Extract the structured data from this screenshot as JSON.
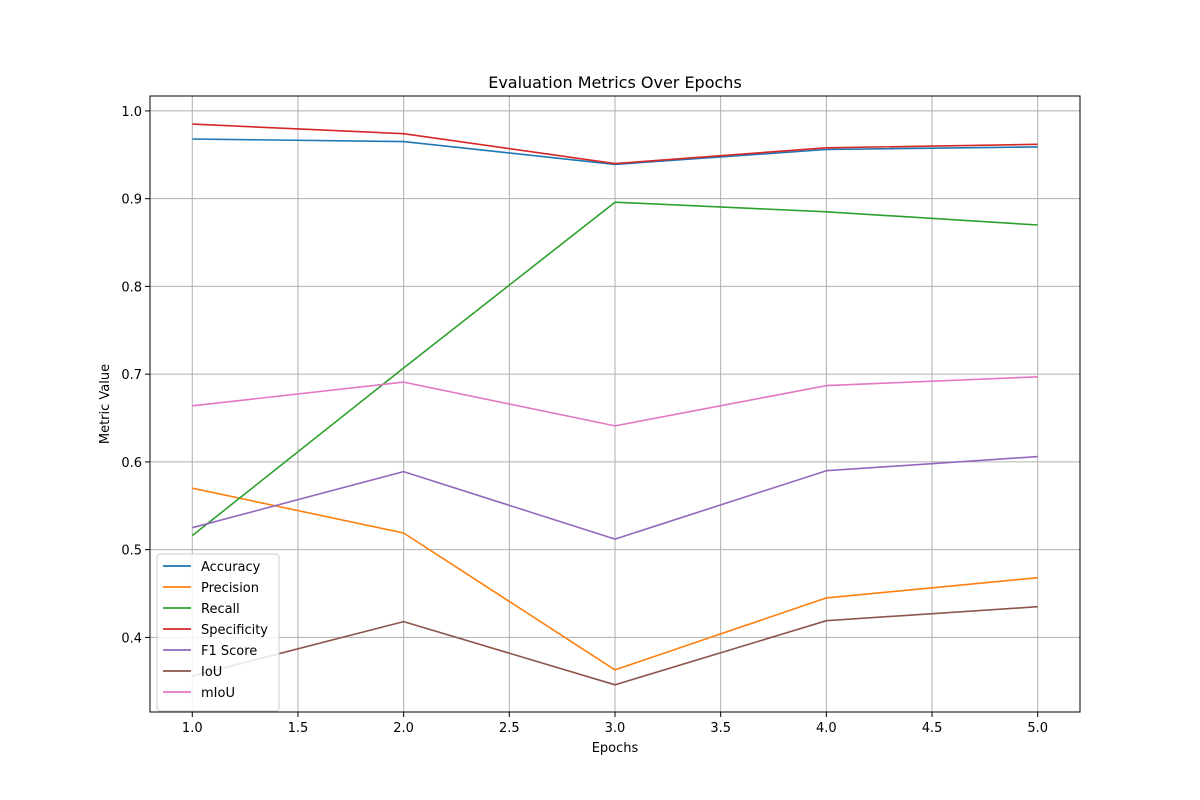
{
  "chart_data": {
    "type": "line",
    "title": "Evaluation Metrics Over Epochs",
    "xlabel": "Epochs",
    "ylabel": "Metric Value",
    "x": [
      1,
      2,
      3,
      4,
      5
    ],
    "xlim": [
      0.8,
      5.2
    ],
    "ylim": [
      0.315,
      1.017
    ],
    "xticks": [
      1.0,
      1.5,
      2.0,
      2.5,
      3.0,
      3.5,
      4.0,
      4.5,
      5.0
    ],
    "yticks": [
      0.4,
      0.5,
      0.6,
      0.7,
      0.8,
      0.9,
      1.0
    ],
    "grid": true,
    "legend_position": "lower-left",
    "series": [
      {
        "name": "Accuracy",
        "color": "#1f77b4",
        "values": [
          0.968,
          0.965,
          0.939,
          0.956,
          0.959
        ]
      },
      {
        "name": "Precision",
        "color": "#ff7f0e",
        "values": [
          0.57,
          0.519,
          0.363,
          0.445,
          0.468
        ]
      },
      {
        "name": "Recall",
        "color": "#2ca02c",
        "values": [
          0.516,
          0.707,
          0.896,
          0.885,
          0.87
        ]
      },
      {
        "name": "Specificity",
        "color": "#d62728",
        "values": [
          0.985,
          0.974,
          0.94,
          0.958,
          0.962
        ]
      },
      {
        "name": "F1 Score",
        "color": "#9467bd",
        "values": [
          0.525,
          0.589,
          0.512,
          0.59,
          0.606
        ]
      },
      {
        "name": "IoU",
        "color": "#8c564b",
        "values": [
          0.356,
          0.418,
          0.346,
          0.419,
          0.435
        ]
      },
      {
        "name": "mIoU",
        "color": "#e377c2",
        "values": [
          0.664,
          0.691,
          0.641,
          0.687,
          0.697
        ]
      }
    ]
  }
}
